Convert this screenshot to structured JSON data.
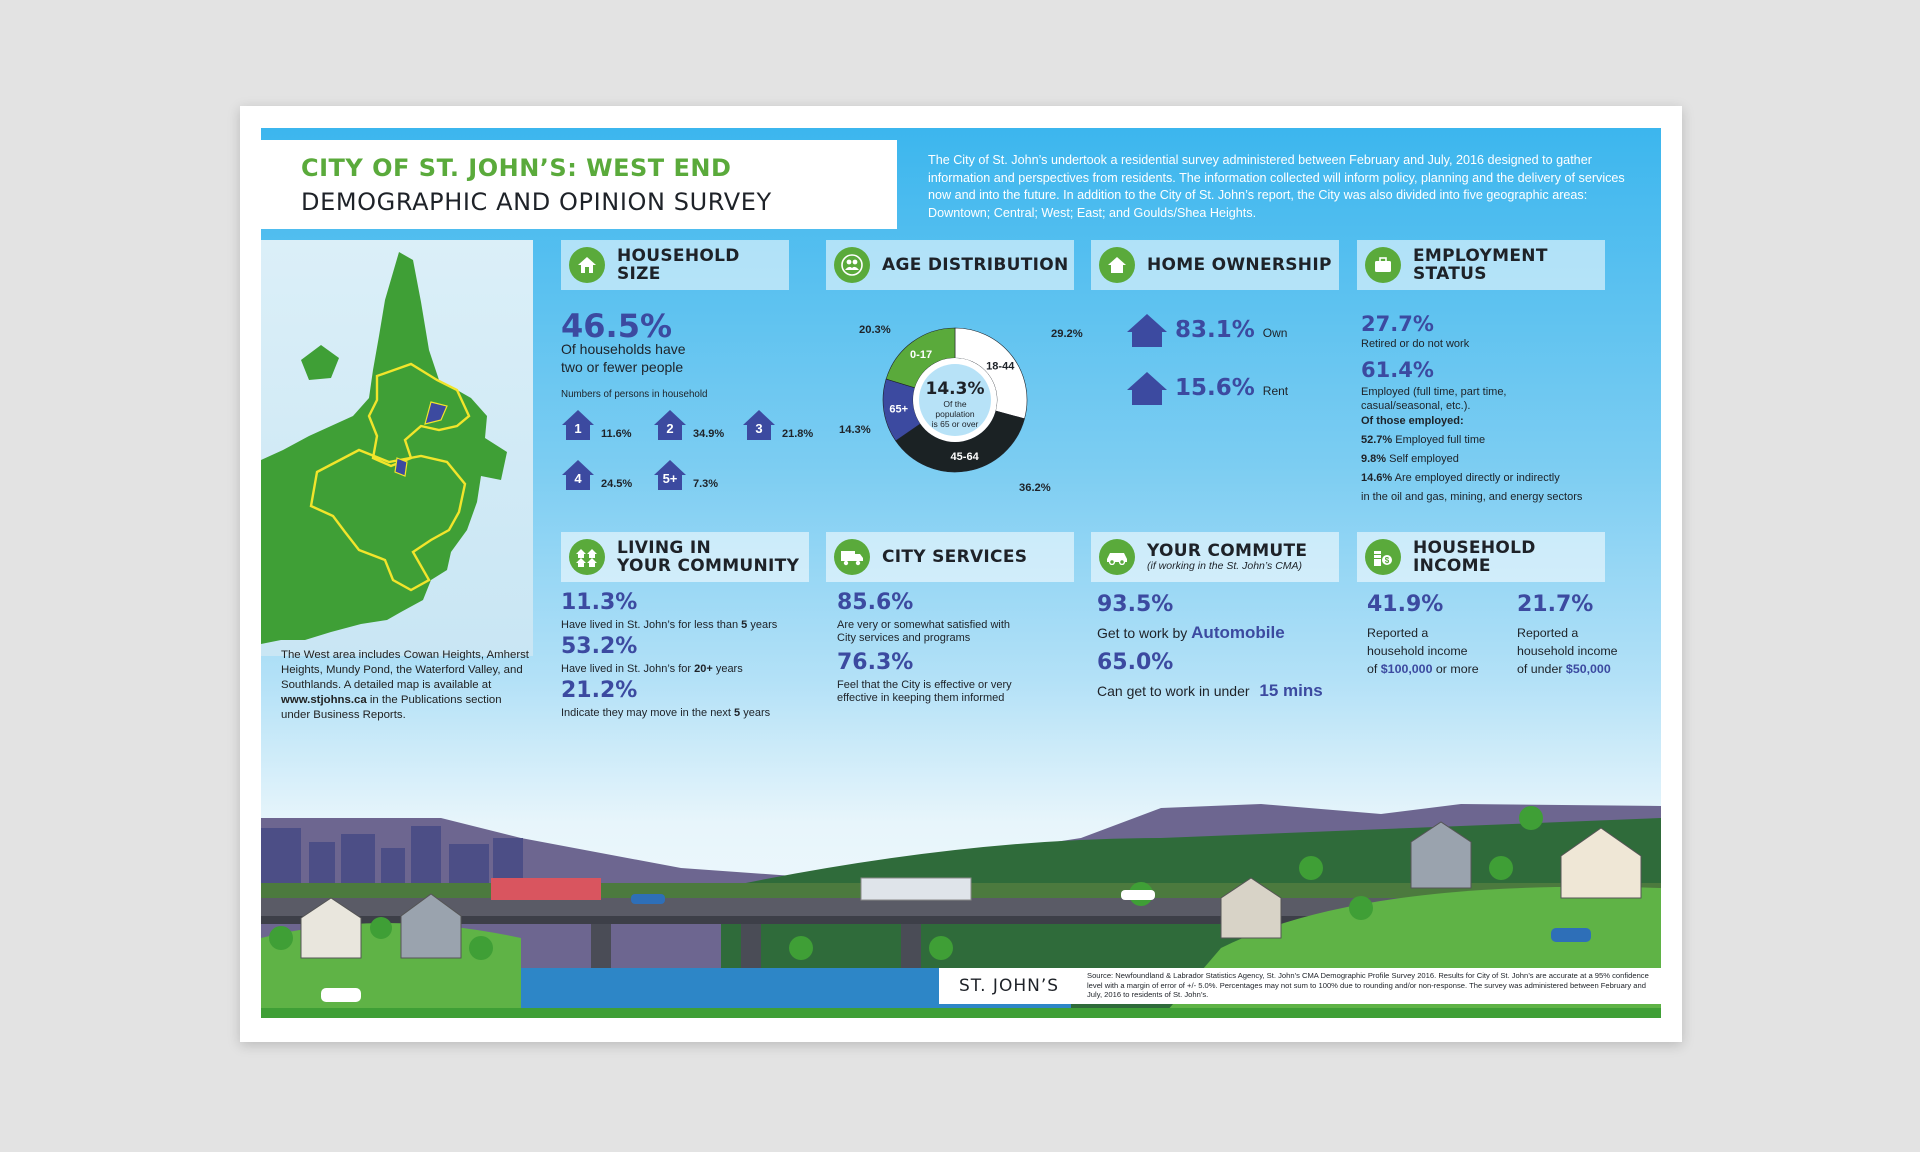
{
  "title": {
    "line1": "CITY OF ST. JOHN’S: WEST END",
    "line2": "DEMOGRAPHIC AND OPINION SURVEY"
  },
  "intro": "The City of St. John’s undertook a residential survey administered between February and July, 2016 designed to gather information and perspectives from residents. The information collected will inform policy, planning and the delivery of services now and into the future. In addition to the City of St. John’s report, the City was also divided into five geographic areas: Downtown; Central; West; East; and Goulds/Shea Heights.",
  "map_caption": {
    "text1": "The West area includes Cowan Heights, Amherst Heights, Mundy Pond, the Waterford Valley, and Southlands. A detailed map is available at ",
    "link": "www.stjohns.ca",
    "text2": " in the Publications section under Business Reports."
  },
  "household_size": {
    "title": "HOUSEHOLD SIZE",
    "big": "46.5%",
    "desc1": "Of households have",
    "desc2": "two or fewer people",
    "legend": "Numbers of persons in household",
    "items": [
      {
        "label": "1",
        "pct": "11.6%"
      },
      {
        "label": "2",
        "pct": "34.9%"
      },
      {
        "label": "3",
        "pct": "21.8%"
      },
      {
        "label": "4",
        "pct": "24.5%"
      },
      {
        "label": "5+",
        "pct": "7.3%"
      }
    ]
  },
  "age": {
    "title": "AGE DISTRIBUTION",
    "center_big": "14.3%",
    "center_l1": "Of the",
    "center_l2": "population",
    "center_l3": "is 65 or over",
    "segments": [
      {
        "label": "18-44",
        "pct": "29.2%",
        "value": 29.2,
        "color": "#ffffff"
      },
      {
        "label": "45-64",
        "pct": "36.2%",
        "value": 36.2,
        "color": "#1b2224"
      },
      {
        "label": "65+",
        "pct": "14.3%",
        "value": 14.3,
        "color": "#3c4aa0"
      },
      {
        "label": "0-17",
        "pct": "20.3%",
        "value": 20.3,
        "color": "#5aaa3b"
      }
    ]
  },
  "ownership": {
    "title": "HOME OWNERSHIP",
    "own_val": "83.1%",
    "own_lbl": "Own",
    "rent_val": "15.6%",
    "rent_lbl": "Rent"
  },
  "employment": {
    "title1": "EMPLOYMENT",
    "title2": "STATUS",
    "retired_val": "27.7%",
    "retired_lbl": "Retired or do not work",
    "employed_val": "61.4%",
    "employed_lbl1": "Employed (full time, part time,",
    "employed_lbl2": "casual/seasonal, etc.).",
    "of_those": "Of those employed:",
    "ft_val": "52.7%",
    "ft_lbl": "Employed full time",
    "self_val": "9.8%",
    "self_lbl": "Self employed",
    "oil_val": "14.6%",
    "oil_lbl1": "Are employed directly or indirectly",
    "oil_lbl2": "in the oil and gas, mining, and energy sectors"
  },
  "community": {
    "title1": "LIVING IN",
    "title2": "YOUR COMMUNITY",
    "s1_val": "11.3%",
    "s1_pre": "Have lived in St. John’s for less than ",
    "s1_b": "5",
    "s1_post": " years",
    "s2_val": "53.2%",
    "s2_pre": "Have lived in St. John’s for ",
    "s2_b": "20+",
    "s2_post": " years",
    "s3_val": "21.2%",
    "s3_pre": "Indicate they may move in the next ",
    "s3_b": "5",
    "s3_post": " years"
  },
  "services": {
    "title": "CITY SERVICES",
    "s1_val": "85.6%",
    "s1_l1": "Are very or somewhat satisfied with",
    "s1_l2": "City services and programs",
    "s2_val": "76.3%",
    "s2_l1": "Feel that the City is effective or very",
    "s2_l2": "effective in keeping them informed"
  },
  "commute": {
    "title": "YOUR COMMUTE",
    "sub": "(if working in the St. John’s CMA)",
    "s1_val": "93.5%",
    "s1_pre": "Get to work by ",
    "s1_b": "Automobile",
    "s2_val": "65.0%",
    "s2_pre": "Can get to work in under ",
    "s2_b": "15 mins"
  },
  "income": {
    "title1": "HOUSEHOLD",
    "title2": "INCOME",
    "s1_val": "41.9%",
    "s1_l1": "Reported a",
    "s1_l2": "household income",
    "s1_pre": "of ",
    "s1_b": "$100,000",
    "s1_post": " or more",
    "s2_val": "21.7%",
    "s2_l1": "Reported a",
    "s2_l2": "household income",
    "s2_pre": "of under ",
    "s2_b": "$50,000"
  },
  "footer": {
    "logo": "ST. JOHN’S",
    "source": "Source: Newfoundland & Labrador Statistics Agency, St. John’s CMA Demographic Profile Survey 2016. Results for City of St. John’s are accurate at a 95% confidence level with a margin of error of +/- 5.0%. Percentages may not sum to 100% due to rounding and/or non-response. The survey was administered between February and July, 2016 to residents of St. John’s."
  },
  "colors": {
    "green": "#5aaa3b",
    "navy": "#3c4aa0",
    "dark": "#1e2228",
    "sky": "#3cb6ee"
  }
}
